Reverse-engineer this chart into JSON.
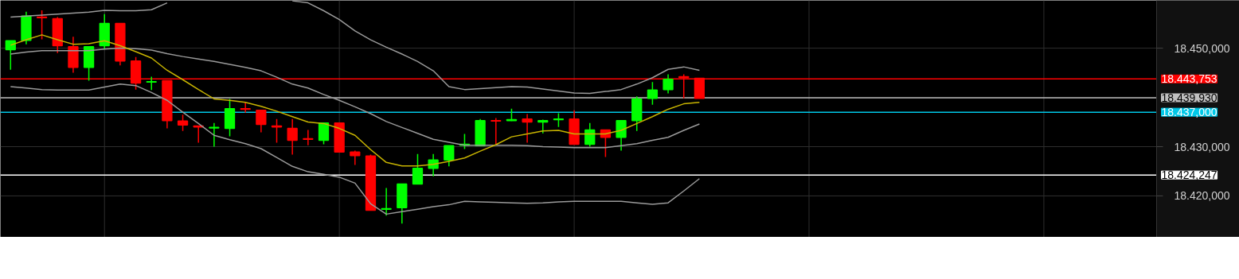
{
  "chart_data": {
    "type": "candlestick",
    "categories": [
      null,
      null,
      null,
      null,
      null,
      null,
      null,
      null,
      null,
      null,
      null,
      null,
      null,
      null,
      null,
      null,
      null,
      null,
      null,
      null,
      null,
      null,
      null,
      null,
      null,
      null,
      null,
      null,
      null,
      null,
      null,
      null,
      null,
      null,
      null,
      null,
      null,
      null,
      null,
      null,
      null,
      null,
      null,
      null,
      null
    ],
    "ohlc": [
      [
        18449.7,
        18451.5,
        18445.6,
        18451.5
      ],
      [
        18451.6,
        18457.4,
        18450.8,
        18456.5
      ],
      [
        18456.3,
        18457.7,
        18451.8,
        18456.2
      ],
      [
        18456.0,
        18456.3,
        18449.0,
        18450.5
      ],
      [
        18450.3,
        18452.3,
        18445.0,
        18446.1
      ],
      [
        18446.1,
        18450.3,
        18443.4,
        18450.3
      ],
      [
        18450.5,
        18456.9,
        18449.8,
        18455.0
      ],
      [
        18455.0,
        18455.0,
        18446.5,
        18447.4
      ],
      [
        18447.4,
        18448.2,
        18441.6,
        18442.9
      ],
      [
        18443.1,
        18444.2,
        18441.5,
        18443.2
      ],
      [
        18443.4,
        18443.4,
        18433.7,
        18435.3
      ],
      [
        18435.2,
        18436.5,
        18433.2,
        18434.4
      ],
      [
        18434.2,
        18434.2,
        18430.8,
        18434.0
      ],
      [
        18433.8,
        18434.8,
        18430.0,
        18433.9
      ],
      [
        18433.7,
        18439.7,
        18432.1,
        18437.7
      ],
      [
        18437.7,
        18439.0,
        18436.9,
        18437.6
      ],
      [
        18437.4,
        18437.4,
        18432.9,
        18434.5
      ],
      [
        18434.2,
        18435.6,
        18430.8,
        18434.0
      ],
      [
        18433.7,
        18435.6,
        18428.4,
        18431.3
      ],
      [
        18431.6,
        18433.4,
        18430.3,
        18431.5
      ],
      [
        18431.3,
        18434.8,
        18430.5,
        18434.8
      ],
      [
        18434.8,
        18434.8,
        18428.9,
        18428.9
      ],
      [
        18428.9,
        18429.2,
        18426.3,
        18428.2
      ],
      [
        18428.1,
        18428.4,
        18417.1,
        18417.1
      ],
      [
        18417.3,
        18421.6,
        18416.0,
        18417.4
      ],
      [
        18417.6,
        18422.4,
        18414.4,
        18422.4
      ],
      [
        18422.4,
        18428.5,
        18422.4,
        18425.6
      ],
      [
        18425.6,
        18428.5,
        18424.0,
        18427.3
      ],
      [
        18427.3,
        18430.2,
        18426.0,
        18430.2
      ],
      [
        18430.3,
        18432.6,
        18429.5,
        18430.5
      ],
      [
        18430.2,
        18435.6,
        18430.2,
        18435.3
      ],
      [
        18435.3,
        18435.8,
        18430.5,
        18435.2
      ],
      [
        18435.3,
        18437.7,
        18435.2,
        18435.5
      ],
      [
        18435.6,
        18436.6,
        18430.8,
        18435.0
      ],
      [
        18435.0,
        18435.5,
        18432.7,
        18435.3
      ],
      [
        18435.5,
        18436.8,
        18434.0,
        18435.6
      ],
      [
        18435.6,
        18437.4,
        18430.5,
        18430.5
      ],
      [
        18430.5,
        18434.8,
        18430.0,
        18433.4
      ],
      [
        18433.4,
        18433.4,
        18427.9,
        18431.9
      ],
      [
        18431.9,
        18435.3,
        18429.2,
        18435.3
      ],
      [
        18435.3,
        18440.2,
        18433.2,
        18439.7
      ],
      [
        18439.8,
        18443.1,
        18438.5,
        18441.5
      ],
      [
        18441.6,
        18444.7,
        18440.8,
        18443.7
      ],
      [
        18444.2,
        18444.7,
        18439.8,
        18444.0
      ],
      [
        18443.9,
        18443.9,
        18439.8,
        18439.8
      ]
    ],
    "colors": [
      "#00ff00",
      "#00ff00",
      "#ff0000",
      "#ff0000",
      "#ff0000",
      "#00ff00",
      "#00ff00",
      "#ff0000",
      "#ff0000",
      "#00ff00",
      "#ff0000",
      "#ff0000",
      "#ff0000",
      "#00ff00",
      "#00ff00",
      "#ff0000",
      "#ff0000",
      "#ff0000",
      "#ff0000",
      "#ff0000",
      "#00ff00",
      "#ff0000",
      "#ff0000",
      "#ff0000",
      "#00ff00",
      "#00ff00",
      "#00ff00",
      "#00ff00",
      "#00ff00",
      "#00ff00",
      "#00ff00",
      "#ff0000",
      "#00ff00",
      "#ff0000",
      "#00ff00",
      "#00ff00",
      "#ff0000",
      "#00ff00",
      "#ff0000",
      "#00ff00",
      "#00ff00",
      "#00ff00",
      "#00ff00",
      "#ff0000",
      "#ff0000"
    ],
    "series": [
      {
        "type": "line",
        "color": "#9a9a9a",
        "values": [
          18456.3,
          18456.5,
          18456.7,
          18456.9,
          18457.1,
          18457.3,
          18457.7,
          18457.6,
          18457.6,
          18457.8,
          18459.2,
          null,
          null,
          null,
          null,
          null,
          null,
          null,
          18459.6,
          18459.2,
          18457.6,
          18455.8,
          18453.5,
          18451.7,
          18450.2,
          18448.8,
          18447.3,
          18445.4,
          18442.2,
          18441.6,
          18441.8,
          18442.0,
          18442.2,
          18442.1,
          18441.7,
          18441.3,
          18440.9,
          18440.8,
          18441.2,
          18441.6,
          18442.7,
          18444.0,
          18445.7,
          18446.2,
          18445.5
        ]
      },
      {
        "type": "line",
        "color": "#9a9a9a",
        "values": [
          18448.8,
          18449.2,
          18449.5,
          18449.5,
          18449.5,
          18449.5,
          18449.8,
          18450.0,
          18449.9,
          18449.6,
          18448.9,
          18448.3,
          18447.8,
          18447.3,
          18446.7,
          18446.1,
          18445.4,
          18444.1,
          18442.7,
          18441.9,
          18440.6,
          18439.4,
          18438.1,
          18436.7,
          18435.1,
          18433.9,
          18432.7,
          18431.5,
          18430.9,
          18430.3,
          18430.3,
          18430.3,
          18430.3,
          18430.2,
          18430.0,
          18429.9,
          18429.8,
          18429.8,
          18429.8,
          18430.2,
          18430.6,
          18431.3,
          18431.9,
          18433.3,
          18434.6
        ]
      },
      {
        "type": "line",
        "color": "#9a9a9a",
        "values": [
          18442.2,
          18441.9,
          18441.6,
          18441.5,
          18441.5,
          18441.5,
          18442.1,
          18442.7,
          18442.4,
          18441.0,
          18439.4,
          18437.0,
          18434.7,
          18432.3,
          18431.4,
          18430.6,
          18429.6,
          18427.8,
          18426.0,
          18424.9,
          18424.4,
          18423.8,
          18422.6,
          18418.4,
          18416.3,
          18416.8,
          18417.3,
          18417.8,
          18418.2,
          18418.9,
          18418.8,
          18418.7,
          18418.6,
          18418.5,
          18418.6,
          18418.8,
          18418.9,
          18418.9,
          18418.9,
          18418.9,
          18418.6,
          18418.3,
          18418.6,
          18421.0,
          18423.5
        ]
      },
      {
        "type": "line",
        "color": "#c8b400",
        "values": [
          18450.6,
          18451.7,
          18452.7,
          18451.7,
          18450.8,
          18450.9,
          18451.5,
          18450.5,
          18449.3,
          18448.0,
          18445.5,
          18443.6,
          18441.6,
          18439.7,
          18439.4,
          18439.0,
          18438.2,
          18437.2,
          18436.1,
          18435.0,
          18434.7,
          18433.7,
          18432.3,
          18429.4,
          18426.8,
          18426.1,
          18426.1,
          18426.4,
          18427.0,
          18427.7,
          18429.1,
          18430.4,
          18432.0,
          18432.6,
          18433.2,
          18433.3,
          18432.6,
          18432.6,
          18432.6,
          18433.3,
          18434.7,
          18436.1,
          18437.6,
          18438.7,
          18439.0
        ]
      }
    ],
    "ref_lines": [
      {
        "axis": "y",
        "value": 18443.753,
        "label": "18.443,753",
        "color": "#ff0000"
      },
      {
        "axis": "y",
        "value": 18439.93,
        "label": "18.439,930",
        "color": "#c0c0c0"
      },
      {
        "axis": "y",
        "value": 18437.0,
        "label": "18.437,000",
        "color": "#00c8e8"
      },
      {
        "axis": "y",
        "value": 18424.247,
        "label": "18.424,247",
        "color": "#ffffff"
      }
    ],
    "ylim": [
      18411.6,
      18459.7
    ],
    "yticks": [
      {
        "value": 18420,
        "label": "18.420,000"
      },
      {
        "value": 18430,
        "label": "18.430,000"
      },
      {
        "value": 18450,
        "label": "18.450,000"
      }
    ],
    "tick_labels": "y",
    "grid": true
  }
}
